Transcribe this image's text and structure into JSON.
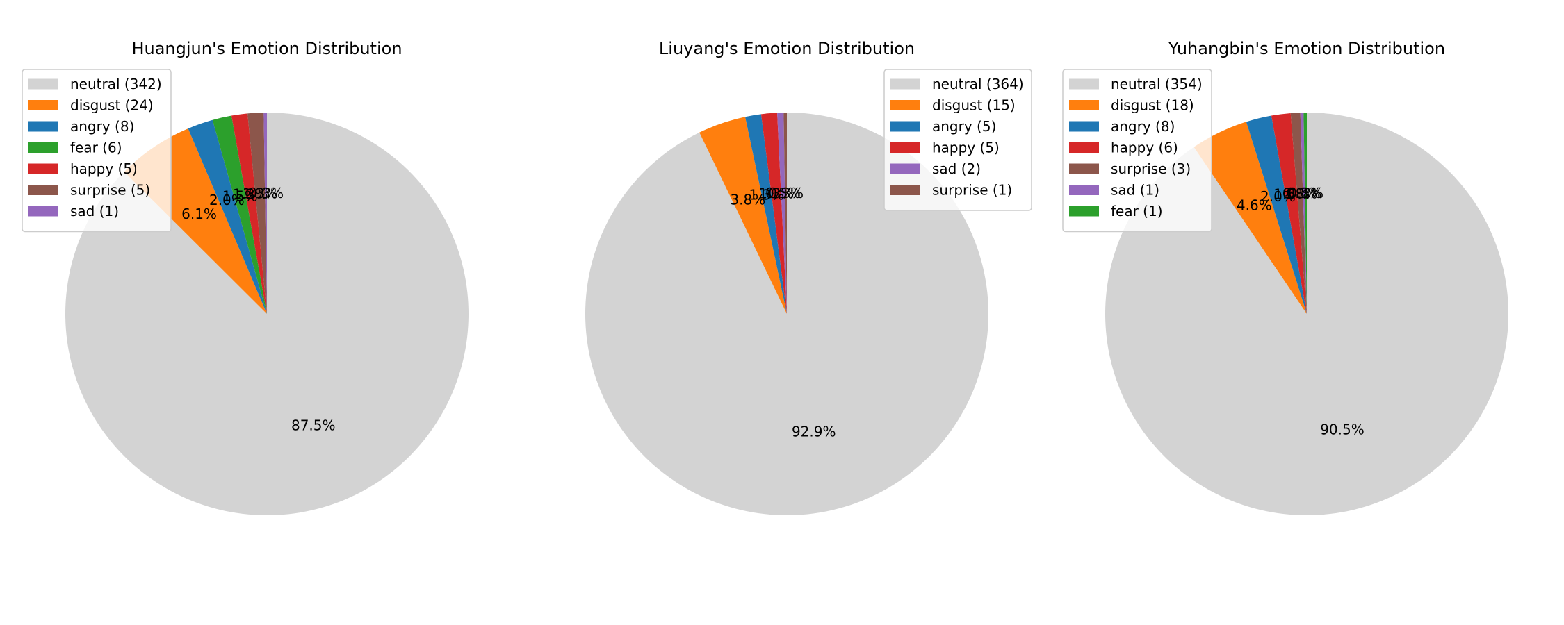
{
  "chart_data": [
    {
      "type": "pie",
      "title": "Huangjun's Emotion Distribution",
      "legend_position": "upper-left",
      "start_angle_deg": 90,
      "direction": "clockwise",
      "slices": [
        {
          "label": "neutral",
          "count": 342,
          "legend": "neutral (342)",
          "pct": "87.5%",
          "color": "#d3d3d3"
        },
        {
          "label": "disgust",
          "count": 24,
          "legend": "disgust (24)",
          "pct": "6.1%",
          "color": "#ff7f0e"
        },
        {
          "label": "angry",
          "count": 8,
          "legend": "angry (8)",
          "pct": "2.0%",
          "color": "#1f77b4"
        },
        {
          "label": "fear",
          "count": 6,
          "legend": "fear (6)",
          "pct": "1.5%",
          "color": "#2ca02c"
        },
        {
          "label": "happy",
          "count": 5,
          "legend": "happy (5)",
          "pct": "1.3%",
          "color": "#d62728"
        },
        {
          "label": "surprise",
          "count": 5,
          "legend": "surprise (5)",
          "pct": "1.3%",
          "color": "#8c564b"
        },
        {
          "label": "sad",
          "count": 1,
          "legend": "sad (1)",
          "pct": "0.3%",
          "color": "#9467bd"
        }
      ]
    },
    {
      "type": "pie",
      "title": "Liuyang's Emotion Distribution",
      "legend_position": "upper-right",
      "start_angle_deg": 90,
      "direction": "clockwise",
      "slices": [
        {
          "label": "neutral",
          "count": 364,
          "legend": "neutral (364)",
          "pct": "92.9%",
          "color": "#d3d3d3"
        },
        {
          "label": "disgust",
          "count": 15,
          "legend": "disgust (15)",
          "pct": "3.8%",
          "color": "#ff7f0e"
        },
        {
          "label": "angry",
          "count": 5,
          "legend": "angry (5)",
          "pct": "1.3%",
          "color": "#1f77b4"
        },
        {
          "label": "happy",
          "count": 5,
          "legend": "happy (5)",
          "pct": "1.3%",
          "color": "#d62728"
        },
        {
          "label": "sad",
          "count": 2,
          "legend": "sad (2)",
          "pct": "0.5%",
          "color": "#9467bd"
        },
        {
          "label": "surprise",
          "count": 1,
          "legend": "surprise (1)",
          "pct": "0.3%",
          "color": "#8c564b"
        }
      ]
    },
    {
      "type": "pie",
      "title": "Yuhangbin's Emotion Distribution",
      "legend_position": "upper-left",
      "start_angle_deg": 90,
      "direction": "clockwise",
      "slices": [
        {
          "label": "neutral",
          "count": 354,
          "legend": "neutral (354)",
          "pct": "90.5%",
          "color": "#d3d3d3"
        },
        {
          "label": "disgust",
          "count": 18,
          "legend": "disgust (18)",
          "pct": "4.6%",
          "color": "#ff7f0e"
        },
        {
          "label": "angry",
          "count": 8,
          "legend": "angry (8)",
          "pct": "2.0%",
          "color": "#1f77b4"
        },
        {
          "label": "happy",
          "count": 6,
          "legend": "happy (6)",
          "pct": "1.5%",
          "color": "#d62728"
        },
        {
          "label": "surprise",
          "count": 3,
          "legend": "surprise (3)",
          "pct": "0.8%",
          "color": "#8c564b"
        },
        {
          "label": "sad",
          "count": 1,
          "legend": "sad (1)",
          "pct": "0.3%",
          "color": "#9467bd"
        },
        {
          "label": "fear",
          "count": 1,
          "legend": "fear (1)",
          "pct": "0.3%",
          "color": "#2ca02c"
        }
      ]
    }
  ]
}
